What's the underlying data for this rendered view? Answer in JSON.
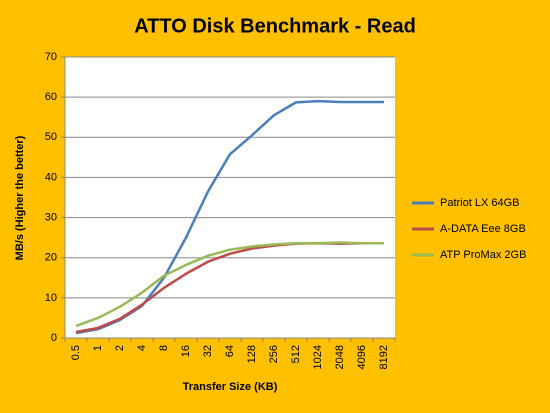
{
  "chart_data": {
    "type": "line",
    "title": "ATTO Disk Benchmark - Read",
    "x_label": "Transfer Size (KB)",
    "y_label": "MB/s (Higher the better)",
    "categories": [
      "0.5",
      "1",
      "2",
      "4",
      "8",
      "16",
      "32",
      "64",
      "128",
      "256",
      "512",
      "1024",
      "2048",
      "4096",
      "8192"
    ],
    "series": [
      {
        "name": "Patriot LX 64GB",
        "color": "#4A7EBB",
        "values": [
          1.2,
          2.2,
          4.5,
          8,
          15,
          25,
          36.5,
          45.8,
          50.5,
          55.5,
          58.7,
          59,
          58.8,
          58.8,
          58.8
        ]
      },
      {
        "name": "A-DATA Eee 8GB",
        "color": "#BE4B48",
        "values": [
          1.5,
          2.5,
          4.8,
          8.3,
          12.5,
          16,
          19,
          21,
          22.3,
          23,
          23.5,
          23.6,
          23.5,
          23.6,
          23.6
        ]
      },
      {
        "name": "ATP ProMax 2GB",
        "color": "#98B954",
        "values": [
          3,
          5,
          7.8,
          11.3,
          15.5,
          18.2,
          20.5,
          22,
          22.8,
          23.3,
          23.6,
          23.6,
          23.8,
          23.6,
          23.6
        ]
      }
    ],
    "ylim": [
      0,
      70
    ],
    "yticks": [
      0,
      10,
      20,
      30,
      40,
      50,
      60,
      70
    ],
    "grid": true,
    "legend": "right"
  }
}
